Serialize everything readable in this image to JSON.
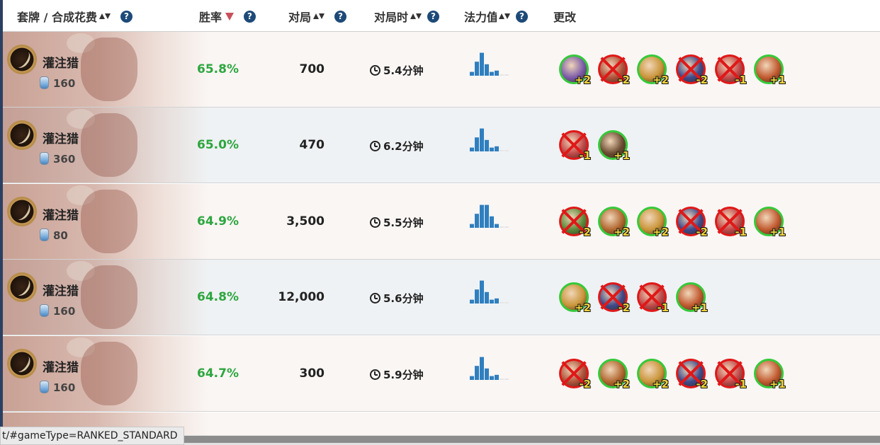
{
  "header": {
    "deck_label": "套牌 / 合成花费",
    "winrate_label": "胜率",
    "games_label": "对局",
    "duration_label": "对局时",
    "curve_label": "法力值",
    "changes_label": "更改",
    "help_glyph": "?"
  },
  "colors": {
    "winrate_green": "#2da63f",
    "add_border": "#35c93a",
    "remove_border": "#e01818",
    "curve_bar": "#2f7fbf",
    "sort_active": "#c8505a",
    "header_help": "#1d4a78"
  },
  "rows": [
    {
      "name": "灌注猎",
      "dust": "160",
      "winrate": "65.8%",
      "games": "700",
      "duration": "5.4分钟",
      "curve": [
        0.15,
        0.55,
        0.9,
        0.45,
        0.15,
        0.2,
        0.05,
        0.05
      ],
      "changes": [
        {
          "type": "add",
          "count": "+2",
          "color": "#7a5aa8"
        },
        {
          "type": "remove",
          "count": "-2",
          "color": "#b0523a"
        },
        {
          "type": "add",
          "count": "+2",
          "color": "#c99438"
        },
        {
          "type": "remove",
          "count": "-2",
          "color": "#3e4a8a"
        },
        {
          "type": "remove",
          "count": "-1",
          "color": "#c24a4a"
        },
        {
          "type": "add",
          "count": "+1",
          "color": "#c0582e"
        }
      ]
    },
    {
      "name": "灌注猎",
      "dust": "360",
      "winrate": "65.0%",
      "games": "470",
      "duration": "6.2分钟",
      "curve": [
        0.15,
        0.55,
        0.9,
        0.45,
        0.15,
        0.2,
        0.05,
        0.05
      ],
      "changes": [
        {
          "type": "remove",
          "count": "-1",
          "color": "#c24a4a"
        },
        {
          "type": "add",
          "count": "+1",
          "color": "#6a4a30"
        }
      ]
    },
    {
      "name": "灌注猎",
      "dust": "80",
      "winrate": "64.9%",
      "games": "3,500",
      "duration": "5.5分钟",
      "curve": [
        0.15,
        0.55,
        0.9,
        0.9,
        0.45,
        0.15,
        0.05,
        0.05
      ],
      "changes": [
        {
          "type": "remove",
          "count": "-2",
          "color": "#5a8a3a"
        },
        {
          "type": "add",
          "count": "+2",
          "color": "#b0662e"
        },
        {
          "type": "add",
          "count": "+2",
          "color": "#c99438"
        },
        {
          "type": "remove",
          "count": "-2",
          "color": "#3e4a8a"
        },
        {
          "type": "remove",
          "count": "-1",
          "color": "#c24a4a"
        },
        {
          "type": "add",
          "count": "+1",
          "color": "#c0582e"
        }
      ]
    },
    {
      "name": "灌注猎",
      "dust": "160",
      "winrate": "64.8%",
      "games": "12,000",
      "duration": "5.6分钟",
      "curve": [
        0.15,
        0.55,
        0.9,
        0.45,
        0.15,
        0.2,
        0.05,
        0.05
      ],
      "changes": [
        {
          "type": "add",
          "count": "+2",
          "color": "#c99438"
        },
        {
          "type": "remove",
          "count": "-2",
          "color": "#3e4a8a"
        },
        {
          "type": "remove",
          "count": "-1",
          "color": "#c24a4a"
        },
        {
          "type": "add",
          "count": "+1",
          "color": "#c0582e"
        }
      ]
    },
    {
      "name": "灌注猎",
      "dust": "160",
      "winrate": "64.7%",
      "games": "300",
      "duration": "5.9分钟",
      "curve": [
        0.15,
        0.55,
        0.9,
        0.45,
        0.15,
        0.2,
        0.05,
        0.05
      ],
      "changes": [
        {
          "type": "remove",
          "count": "-2",
          "color": "#b0523a"
        },
        {
          "type": "add",
          "count": "+2",
          "color": "#b0662e"
        },
        {
          "type": "add",
          "count": "+2",
          "color": "#c99438"
        },
        {
          "type": "remove",
          "count": "-2",
          "color": "#3e4a8a"
        },
        {
          "type": "remove",
          "count": "-1",
          "color": "#c24a4a"
        },
        {
          "type": "add",
          "count": "+1",
          "color": "#c0582e"
        }
      ]
    }
  ],
  "status_url": "t/#gameType=RANKED_STANDARD"
}
